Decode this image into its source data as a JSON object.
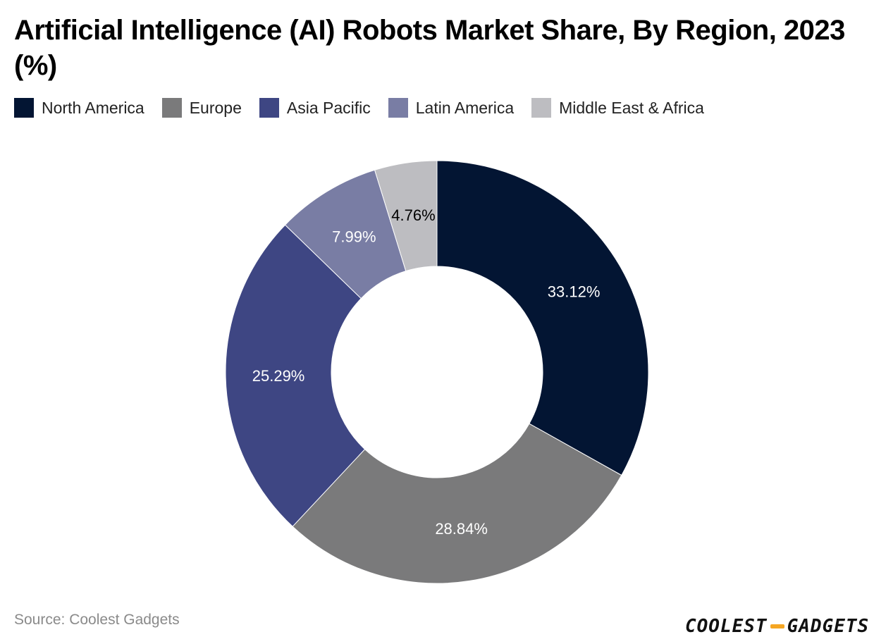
{
  "title": "Artificial Intelligence (AI) Robots Market Share, By Region, 2023 (%)",
  "source": "Source: Coolest Gadgets",
  "logo": {
    "part1": "COOLEST",
    "part2": "GADGETS",
    "accent_color": "#f5a623"
  },
  "chart_data": {
    "type": "pie",
    "variant": "donut",
    "title": "Artificial Intelligence (AI) Robots Market Share, By Region, 2023 (%)",
    "legend_position": "top-left",
    "categories": [
      "North America",
      "Europe",
      "Asia Pacific",
      "Latin America",
      "Middle East & Africa"
    ],
    "values": [
      33.12,
      28.84,
      25.29,
      7.99,
      4.76
    ],
    "labels": [
      "33.12%",
      "28.84%",
      "25.29%",
      "7.99%",
      "4.76%"
    ],
    "colors": [
      "#031533",
      "#7a7a7b",
      "#3e4683",
      "#797da4",
      "#bdbdc1"
    ],
    "label_colors": [
      "#ffffff",
      "#ffffff",
      "#ffffff",
      "#ffffff",
      "#000000"
    ]
  }
}
